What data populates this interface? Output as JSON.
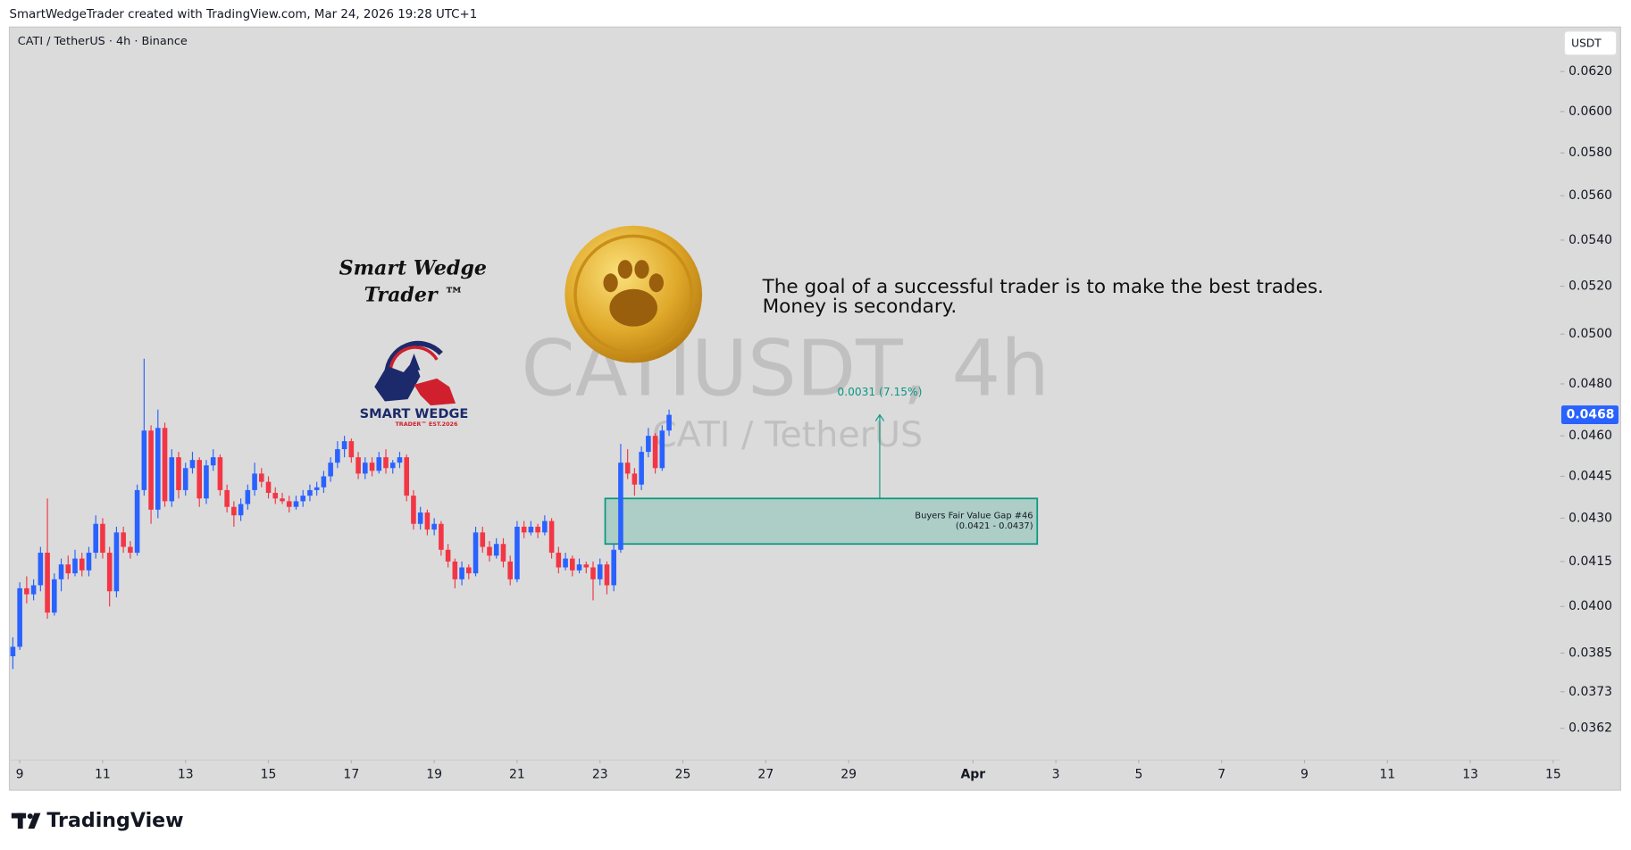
{
  "header": "SmartWedgeTrader created with TradingView.com, Mar 24, 2026 19:28 UTC+1",
  "footer_logo": "TradingView",
  "logo": {
    "script_line1": "Smart Wedge",
    "script_line2": "Trader ™",
    "brand": "SMART WEDGE",
    "tagline": "TRADER™ EST.2026"
  },
  "quote": [
    "The goal of a successful trader is to make the best trades.",
    "Money is secondary."
  ],
  "chart_data": {
    "type": "candlestick",
    "symbol": "CATI / TetherUS · 4h · Binance",
    "watermark": "CATIUSDT, 4h",
    "watermark_sub": "CATI / TetherUS",
    "currency": "USDT",
    "x": [
      8.8333,
      9,
      9.1667,
      9.3333,
      9.5,
      9.6667,
      9.8333,
      10,
      10.1667,
      10.3333,
      10.5,
      10.6667,
      10.8333,
      11,
      11.1667,
      11.3333,
      11.5,
      11.6667,
      11.8333,
      12,
      12.1667,
      12.3333,
      12.5,
      12.6667,
      12.8333,
      13,
      13.1667,
      13.3333,
      13.5,
      13.6667,
      13.8333,
      14,
      14.1667,
      14.3333,
      14.5,
      14.6667,
      14.8333,
      15,
      15.1667,
      15.3333,
      15.5,
      15.6667,
      15.8333,
      16,
      16.1667,
      16.3333,
      16.5,
      16.6667,
      16.8333,
      17,
      17.1667,
      17.3333,
      17.5,
      17.6667,
      17.8333,
      18,
      18.1667,
      18.3333,
      18.5,
      18.6667,
      18.8333,
      19,
      19.1667,
      19.3333,
      19.5,
      19.6667,
      19.8333,
      20,
      20.1667,
      20.3333,
      20.5,
      20.6667,
      20.8333,
      21,
      21.1667,
      21.3333,
      21.5,
      21.6667,
      21.8333,
      22,
      22.1667,
      22.3333,
      22.5,
      22.6667,
      22.8333,
      23,
      23.1667,
      23.3333,
      23.5,
      23.6667,
      23.8333,
      24,
      24.1667,
      24.3333,
      24.5,
      24.6667
    ],
    "open": [
      0.0384,
      0.0387,
      0.0406,
      0.0404,
      0.0407,
      0.0418,
      0.0398,
      0.0409,
      0.0414,
      0.0411,
      0.0416,
      0.0412,
      0.0418,
      0.0428,
      0.0418,
      0.0405,
      0.0425,
      0.042,
      0.0418,
      0.044,
      0.0462,
      0.0433,
      0.0463,
      0.0436,
      0.0452,
      0.044,
      0.0448,
      0.0451,
      0.0437,
      0.0449,
      0.0452,
      0.044,
      0.0434,
      0.0431,
      0.0435,
      0.044,
      0.0446,
      0.0443,
      0.0439,
      0.0437,
      0.0436,
      0.0434,
      0.0436,
      0.0438,
      0.044,
      0.0441,
      0.0445,
      0.045,
      0.0455,
      0.0458,
      0.0452,
      0.0446,
      0.045,
      0.0447,
      0.0452,
      0.0448,
      0.045,
      0.0452,
      0.0438,
      0.0428,
      0.0432,
      0.0426,
      0.0428,
      0.0419,
      0.0415,
      0.0409,
      0.0413,
      0.0411,
      0.0425,
      0.042,
      0.0417,
      0.0421,
      0.0415,
      0.0409,
      0.0427,
      0.0425,
      0.0427,
      0.0425,
      0.0429,
      0.0418,
      0.0413,
      0.0416,
      0.0412,
      0.0414,
      0.0413,
      0.0409,
      0.0414,
      0.0407,
      0.0419,
      0.045,
      0.0446,
      0.0442,
      0.0454,
      0.046,
      0.0448,
      0.0462
    ],
    "high": [
      0.039,
      0.0408,
      0.041,
      0.0409,
      0.042,
      0.0437,
      0.0411,
      0.0416,
      0.0417,
      0.0419,
      0.0418,
      0.042,
      0.0431,
      0.043,
      0.042,
      0.0427,
      0.0427,
      0.0422,
      0.0442,
      0.049,
      0.0464,
      0.047,
      0.0465,
      0.0455,
      0.0454,
      0.045,
      0.0454,
      0.0452,
      0.0451,
      0.0455,
      0.0453,
      0.0442,
      0.0436,
      0.0437,
      0.0442,
      0.045,
      0.0448,
      0.0445,
      0.0441,
      0.0439,
      0.0438,
      0.0438,
      0.044,
      0.0442,
      0.0443,
      0.0447,
      0.0452,
      0.0458,
      0.046,
      0.0459,
      0.0454,
      0.0452,
      0.0452,
      0.0454,
      0.0455,
      0.0451,
      0.0454,
      0.0453,
      0.044,
      0.0434,
      0.0433,
      0.043,
      0.0429,
      0.0421,
      0.0416,
      0.0415,
      0.0414,
      0.0427,
      0.0427,
      0.0422,
      0.0423,
      0.0423,
      0.0417,
      0.0429,
      0.0429,
      0.0429,
      0.0428,
      0.0431,
      0.043,
      0.042,
      0.0418,
      0.0417,
      0.0416,
      0.0415,
      0.0415,
      0.0416,
      0.0415,
      0.0421,
      0.0457,
      0.0455,
      0.0448,
      0.0456,
      0.0463,
      0.0461,
      0.0464,
      0.047
    ],
    "low": [
      0.038,
      0.0386,
      0.0401,
      0.0402,
      0.0405,
      0.0396,
      0.0397,
      0.0405,
      0.0409,
      0.041,
      0.041,
      0.041,
      0.0416,
      0.0416,
      0.04,
      0.0403,
      0.0418,
      0.0416,
      0.0417,
      0.0438,
      0.0428,
      0.043,
      0.0434,
      0.0434,
      0.0437,
      0.0438,
      0.0446,
      0.0434,
      0.0435,
      0.0447,
      0.0438,
      0.0432,
      0.0427,
      0.0429,
      0.0433,
      0.0438,
      0.0441,
      0.0437,
      0.0435,
      0.0435,
      0.0432,
      0.0433,
      0.0434,
      0.0436,
      0.0438,
      0.0439,
      0.0443,
      0.0448,
      0.0452,
      0.045,
      0.0444,
      0.0444,
      0.0445,
      0.0446,
      0.0446,
      0.0446,
      0.0448,
      0.0436,
      0.0426,
      0.0426,
      0.0424,
      0.0424,
      0.0417,
      0.0413,
      0.0406,
      0.0407,
      0.0409,
      0.041,
      0.0418,
      0.0415,
      0.0416,
      0.0413,
      0.0407,
      0.0408,
      0.0423,
      0.0424,
      0.0423,
      0.0424,
      0.0416,
      0.0411,
      0.0412,
      0.041,
      0.0411,
      0.0411,
      0.0402,
      0.0407,
      0.0404,
      0.0405,
      0.0418,
      0.0444,
      0.0438,
      0.044,
      0.0452,
      0.0446,
      0.0447,
      0.046
    ],
    "close": [
      0.0387,
      0.0406,
      0.0404,
      0.0407,
      0.0418,
      0.0398,
      0.0409,
      0.0414,
      0.0411,
      0.0416,
      0.0412,
      0.0418,
      0.0428,
      0.0418,
      0.0405,
      0.0425,
      0.042,
      0.0418,
      0.044,
      0.0462,
      0.0433,
      0.0463,
      0.0436,
      0.0452,
      0.044,
      0.0448,
      0.0451,
      0.0437,
      0.0449,
      0.0452,
      0.044,
      0.0434,
      0.0431,
      0.0435,
      0.044,
      0.0446,
      0.0443,
      0.0439,
      0.0437,
      0.0436,
      0.0434,
      0.0436,
      0.0438,
      0.044,
      0.0441,
      0.0445,
      0.045,
      0.0455,
      0.0458,
      0.0452,
      0.0446,
      0.045,
      0.0447,
      0.0452,
      0.0448,
      0.045,
      0.0452,
      0.0438,
      0.0428,
      0.0432,
      0.0426,
      0.0428,
      0.0419,
      0.0415,
      0.0409,
      0.0413,
      0.0411,
      0.0425,
      0.042,
      0.0417,
      0.0421,
      0.0415,
      0.0409,
      0.0427,
      0.0425,
      0.0427,
      0.0425,
      0.0429,
      0.0418,
      0.0413,
      0.0416,
      0.0412,
      0.0414,
      0.0413,
      0.0409,
      0.0414,
      0.0407,
      0.0419,
      0.045,
      0.0446,
      0.0442,
      0.0454,
      0.046,
      0.0448,
      0.0462,
      0.0468
    ],
    "up_color": "#2962ff",
    "down_color": "#f23645",
    "log_scale": true,
    "xlim": [
      8.774,
      46.17
    ],
    "xticks": [
      9,
      11,
      13,
      15,
      17,
      19,
      21,
      23,
      25,
      27,
      29,
      {
        "value": 32,
        "label": "Apr"
      },
      {
        "value": 34,
        "label": "3"
      },
      {
        "value": 36,
        "label": "5"
      },
      {
        "value": 38,
        "label": "7"
      },
      {
        "value": 40,
        "label": "9"
      },
      {
        "value": 42,
        "label": "11"
      },
      {
        "value": 44,
        "label": "13"
      },
      {
        "value": 46,
        "label": "15"
      }
    ],
    "ylim": [
      0.0353,
      0.0643
    ],
    "yticks": [
      {
        "value": 0.062,
        "label": "0.0620"
      },
      {
        "value": 0.06,
        "label": "0.0600"
      },
      {
        "value": 0.058,
        "label": "0.0580"
      },
      {
        "value": 0.056,
        "label": "0.0560"
      },
      {
        "value": 0.054,
        "label": "0.0540"
      },
      {
        "value": 0.052,
        "label": "0.0520"
      },
      {
        "value": 0.05,
        "label": "0.0500"
      },
      {
        "value": 0.048,
        "label": "0.0480"
      },
      {
        "value": 0.046,
        "label": "0.0460"
      },
      0.0445,
      {
        "value": 0.043,
        "label": "0.0430"
      },
      0.0415,
      {
        "value": 0.04,
        "label": "0.0400"
      },
      0.0385,
      0.0373,
      0.0362
    ],
    "last_price": 0.0468,
    "measure": {
      "label": "0.0031 (7.15%)",
      "x": 29.75,
      "from": 0.0437,
      "to": 0.0468,
      "color": "#089981"
    },
    "fvg": {
      "label": "Buyers Fair Value Gap #46",
      "range_label": "(0.0421 - 0.0437)",
      "low": 0.0421,
      "high": 0.0437,
      "x_start": 23.125,
      "x_end": 33.55,
      "color": "#089981"
    }
  }
}
